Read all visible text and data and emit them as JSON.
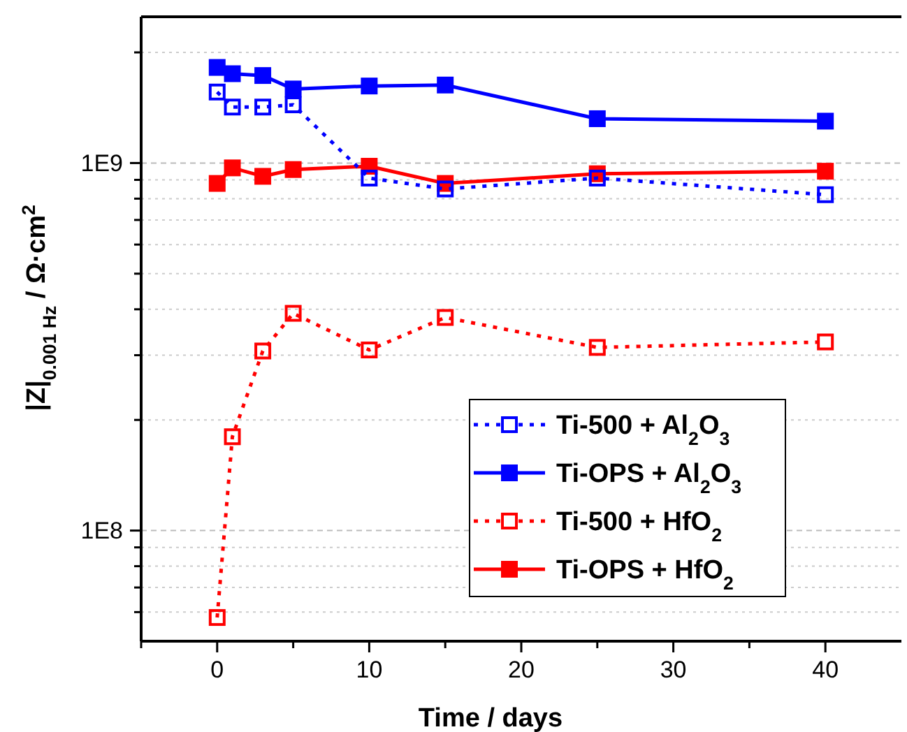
{
  "chart_data": {
    "type": "line",
    "xlabel": "Time / days",
    "ylabel": "|Z|$_{0.001 Hz}$ / Ω·cm$^{2}$",
    "xlim": [
      -5,
      45
    ],
    "xticks": [
      {
        "value": -5,
        "label": null
      },
      0,
      {
        "value": 5,
        "label": null
      },
      10,
      {
        "value": 15,
        "label": null
      },
      20,
      {
        "value": 25,
        "label": null
      },
      30,
      {
        "value": 35,
        "label": null
      },
      40
    ],
    "log": "y",
    "ylim": [
      50000000.0,
      2500000000.0
    ],
    "yticks": [
      {
        "value": 60000000.0,
        "label": null
      },
      {
        "value": 70000000.0,
        "label": null
      },
      {
        "value": 80000000.0,
        "label": null
      },
      {
        "value": 90000000.0,
        "label": null
      },
      {
        "value": 100000000.0,
        "label": "1E8"
      },
      {
        "value": 200000000.0,
        "label": null
      },
      {
        "value": 300000000.0,
        "label": null
      },
      {
        "value": 400000000.0,
        "label": null
      },
      {
        "value": 500000000.0,
        "label": null
      },
      {
        "value": 600000000.0,
        "label": null
      },
      {
        "value": 700000000.0,
        "label": null
      },
      {
        "value": 800000000.0,
        "label": null
      },
      {
        "value": 900000000.0,
        "label": null
      },
      {
        "value": 1000000000.0,
        "label": "1E9"
      },
      {
        "value": 2000000000.0,
        "label": null
      }
    ],
    "grid": "y",
    "legend": "bottom right",
    "marker": "square",
    "x": [
      0,
      1,
      3,
      5,
      10,
      15,
      25,
      40
    ],
    "series": [
      {
        "name": "Ti-500 + Al$_{2}$O$_{3}$",
        "color": "#0000ff",
        "line_style": "dotted",
        "values": [
          1560000000.0,
          1420000000.0,
          1420000000.0,
          1440000000.0,
          910000000.0,
          850000000.0,
          910000000.0,
          820000000.0
        ]
      },
      {
        "name": "Ti-OPS + Al$_{2}$O$_{3}$",
        "color": "#0000ff",
        "line_style": "solid",
        "values": [
          1820000000.0,
          1750000000.0,
          1730000000.0,
          1590000000.0,
          1620000000.0,
          1630000000.0,
          1320000000.0,
          1300000000.0
        ]
      },
      {
        "name": "Ti-500 + HfO$_{2}$",
        "color": "#ff0000",
        "line_style": "dotted",
        "values": [
          58000000.0,
          180000000.0,
          308000000.0,
          390000000.0,
          310000000.0,
          380000000.0,
          315000000.0,
          326000000.0
        ]
      },
      {
        "name": "Ti-OPS + HfO$_{2}$",
        "color": "#ff0000",
        "line_style": "solid",
        "values": [
          880000000.0,
          970000000.0,
          920000000.0,
          960000000.0,
          980000000.0,
          880000000.0,
          935000000.0,
          950000000.0
        ]
      }
    ]
  }
}
